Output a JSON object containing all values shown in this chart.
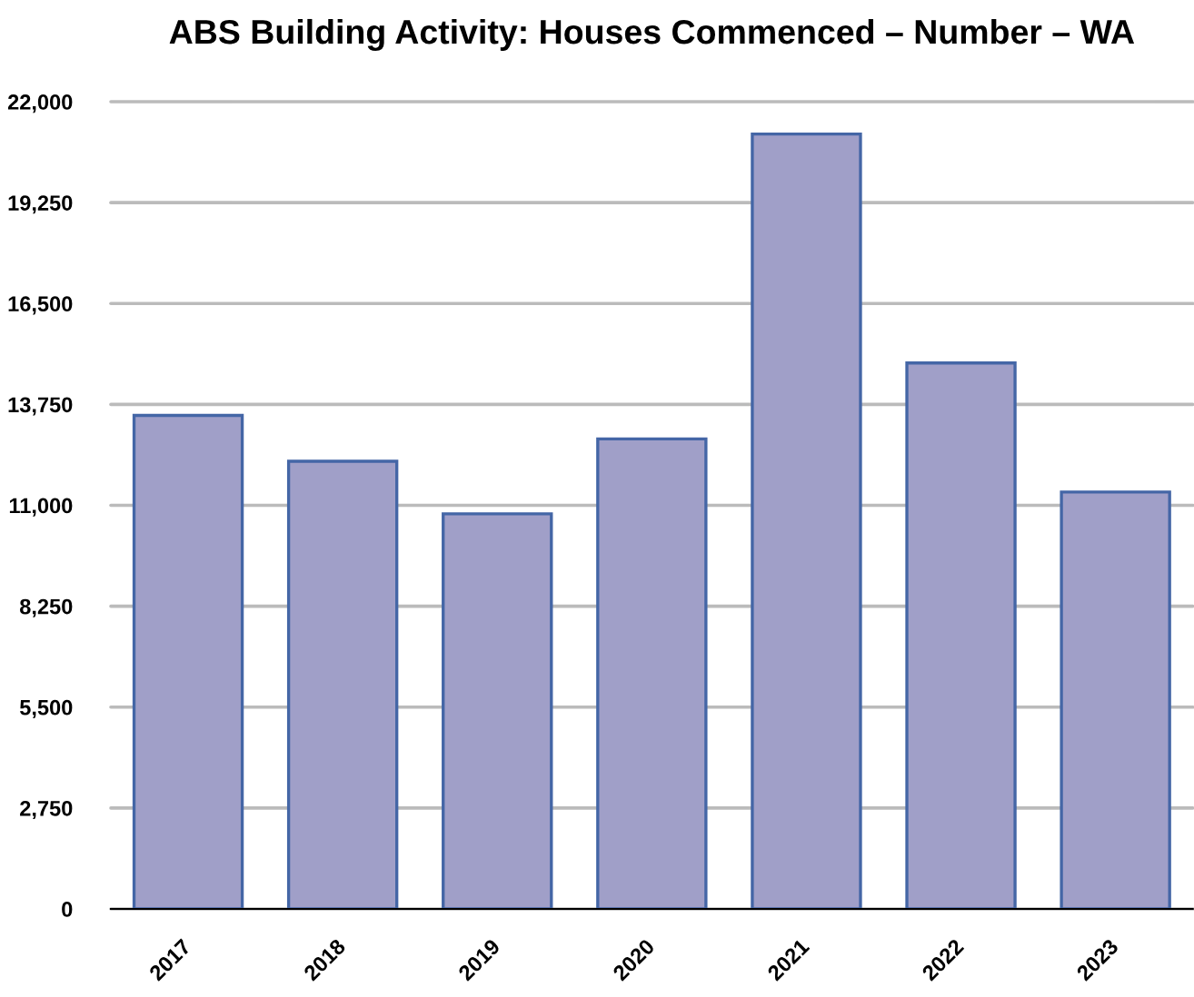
{
  "chart_data": {
    "type": "bar",
    "title": "ABS Building Activity: Houses Commenced – Number – WA",
    "categories": [
      "2017",
      "2018",
      "2019",
      "2020",
      "2021",
      "2022",
      "2023"
    ],
    "values": [
      13450,
      12200,
      10770,
      12810,
      21120,
      14880,
      11360
    ],
    "color": "#a09fc8",
    "ylim": [
      0,
      22000
    ],
    "yticks": [
      0,
      {
        "value": 2750,
        "label": "2,750"
      },
      {
        "value": 5500,
        "label": "5,500"
      },
      {
        "value": 8250,
        "label": "8,250"
      },
      {
        "value": 11000,
        "label": "11,000"
      },
      {
        "value": 13750,
        "label": "13,750"
      },
      {
        "value": 16500,
        "label": "16,500"
      },
      {
        "value": 19250,
        "label": "19,250"
      },
      {
        "value": 22000,
        "label": "22,000"
      }
    ],
    "grid": "y"
  }
}
